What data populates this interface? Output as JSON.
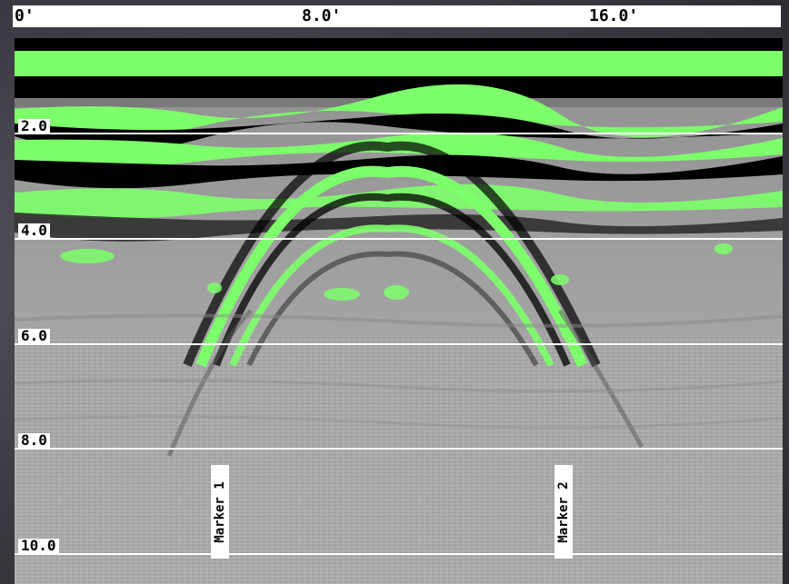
{
  "top_ruler": {
    "labels": [
      "0'",
      "8.0'",
      "16.0'"
    ]
  },
  "depth_axis": {
    "labels": [
      "2.0",
      "4.0",
      "6.0",
      "8.0",
      "10.0"
    ]
  },
  "markers": [
    "Marker 1",
    "Marker 2"
  ],
  "colors": {
    "highlight_green": "#7dff6b",
    "background_gray": "#a9a9a9",
    "frame": "#44434b"
  }
}
